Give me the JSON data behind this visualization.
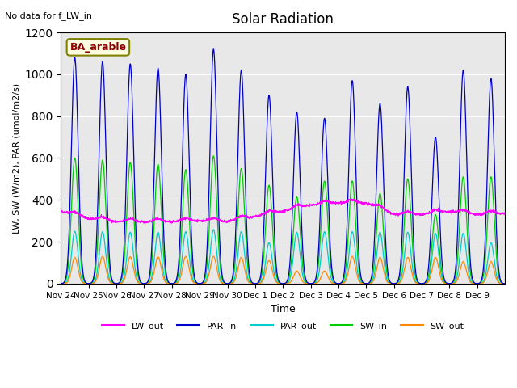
{
  "title": "Solar Radiation",
  "top_left_text": "No data for f_LW_in",
  "legend_label_text": "BA_arable",
  "xlabel": "Time",
  "ylabel": "LW, SW (W/m2), PAR (umol/m2/s)",
  "ylim": [
    0,
    1200
  ],
  "background_color": "#e8e8e8",
  "legend_items": [
    "LW_out",
    "PAR_in",
    "PAR_out",
    "SW_in",
    "SW_out"
  ],
  "legend_colors": [
    "#ff00ff",
    "#0000cc",
    "#00cccc",
    "#00cc00",
    "#ff8800"
  ],
  "xtick_labels": [
    "Nov 24",
    "Nov 25",
    "Nov 26",
    "Nov 27",
    "Nov 28",
    "Nov 29",
    "Nov 30",
    "Dec 1",
    "Dec 2",
    "Dec 3",
    "Dec 4",
    "Dec 5",
    "Dec 6",
    "Dec 7",
    "Dec 8",
    "Dec 9"
  ],
  "PAR_in_peaks": [
    1080,
    1060,
    1050,
    1030,
    1000,
    1120,
    1020,
    900,
    820,
    790,
    970,
    860,
    940,
    700,
    1020,
    980
  ],
  "SW_in_peaks": [
    600,
    590,
    580,
    570,
    545,
    610,
    550,
    470,
    415,
    490,
    490,
    430,
    500,
    330,
    510,
    510
  ],
  "PAR_out_peaks": [
    250,
    248,
    245,
    245,
    248,
    258,
    248,
    195,
    245,
    248,
    248,
    245,
    245,
    240,
    240,
    195
  ],
  "SW_out_peaks": [
    125,
    130,
    128,
    128,
    130,
    130,
    125,
    110,
    60,
    60,
    130,
    125,
    125,
    125,
    105,
    105
  ],
  "LW_out_interp_x": [
    0,
    1,
    2,
    4,
    5,
    6,
    7,
    8,
    9,
    10,
    11,
    12,
    13,
    14,
    15,
    16
  ],
  "LW_out_interp_y": [
    345,
    310,
    295,
    295,
    300,
    295,
    320,
    345,
    375,
    385,
    385,
    330,
    330,
    345,
    330,
    335
  ]
}
